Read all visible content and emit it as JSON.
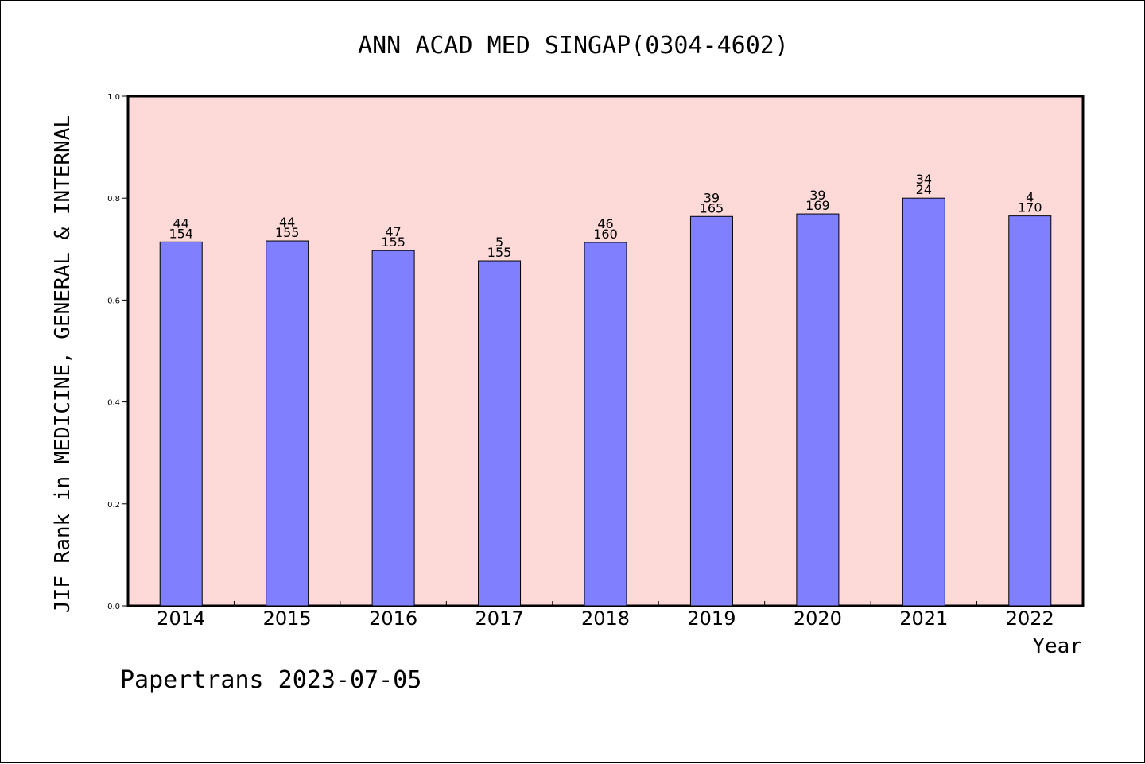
{
  "chart_data": {
    "type": "bar",
    "title": "ANN ACAD MED SINGAP(0304-4602)",
    "xlabel": "Year",
    "ylabel": "JIF Rank in MEDICINE, GENERAL & INTERNAL",
    "ylim": [
      0,
      1.0
    ],
    "yticks": [
      "0.0",
      "0.2",
      "0.4",
      "0.6",
      "0.8",
      "1.0"
    ],
    "categories": [
      "2014",
      "2015",
      "2016",
      "2017",
      "2018",
      "2019",
      "2020",
      "2021",
      "2022"
    ],
    "values": [
      0.714,
      0.716,
      0.697,
      0.677,
      0.713,
      0.764,
      0.769,
      0.8,
      0.765
    ],
    "labels_top": [
      "44",
      "44",
      "47",
      "5",
      "46",
      "39",
      "39",
      "34",
      "4"
    ],
    "labels_bottom": [
      "154",
      "155",
      "155",
      "155",
      "160",
      "165",
      "169",
      "24",
      "170"
    ],
    "colors": {
      "plot_background": "#fddad8",
      "bar_fill": "#8080ff",
      "bar_stroke": "#000000"
    },
    "grid": false
  },
  "footer": {
    "credit": "Papertrans 2023-07-05"
  }
}
